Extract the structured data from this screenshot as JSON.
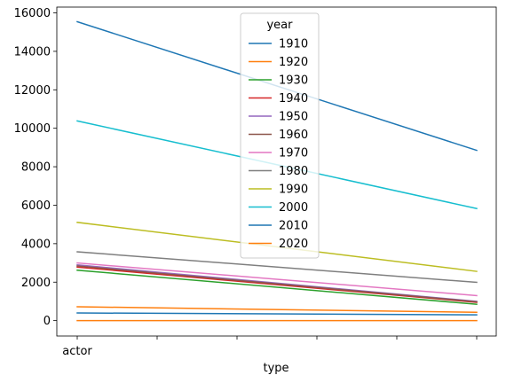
{
  "chart_data": {
    "type": "line",
    "title": "",
    "xlabel": "type",
    "ylabel": "",
    "x_tick_labels": [
      "actor",
      "",
      "",
      "",
      "",
      ""
    ],
    "ylim": [
      -800,
      16300
    ],
    "y_ticks": [
      0,
      2000,
      4000,
      6000,
      8000,
      10000,
      12000,
      14000,
      16000
    ],
    "grid": false,
    "legend": {
      "title": "year",
      "placement": "upper center"
    },
    "series": [
      {
        "name": "1910",
        "color": "#1f77b4",
        "values": [
          15540,
          8850
        ]
      },
      {
        "name": "1920",
        "color": "#ff7f0e",
        "values": [
          0,
          0
        ]
      },
      {
        "name": "1930",
        "color": "#2ca02c",
        "values": [
          2620,
          850
        ]
      },
      {
        "name": "1940",
        "color": "#d62728",
        "values": [
          2780,
          950
        ]
      },
      {
        "name": "1950",
        "color": "#9467bd",
        "values": [
          2900,
          1000
        ]
      },
      {
        "name": "1960",
        "color": "#8c564b",
        "values": [
          2840,
          980
        ]
      },
      {
        "name": "1970",
        "color": "#e377c2",
        "values": [
          3000,
          1300
        ]
      },
      {
        "name": "1980",
        "color": "#7f7f7f",
        "values": [
          3580,
          1990
        ]
      },
      {
        "name": "1990",
        "color": "#bcbd22",
        "values": [
          5110,
          2560
        ]
      },
      {
        "name": "2000",
        "color": "#17becf",
        "values": [
          10380,
          5830
        ]
      },
      {
        "name": "2010",
        "color": "#1f77b4",
        "values": [
          400,
          300
        ]
      },
      {
        "name": "2020",
        "color": "#ff7f0e",
        "values": [
          720,
          430
        ]
      }
    ]
  }
}
